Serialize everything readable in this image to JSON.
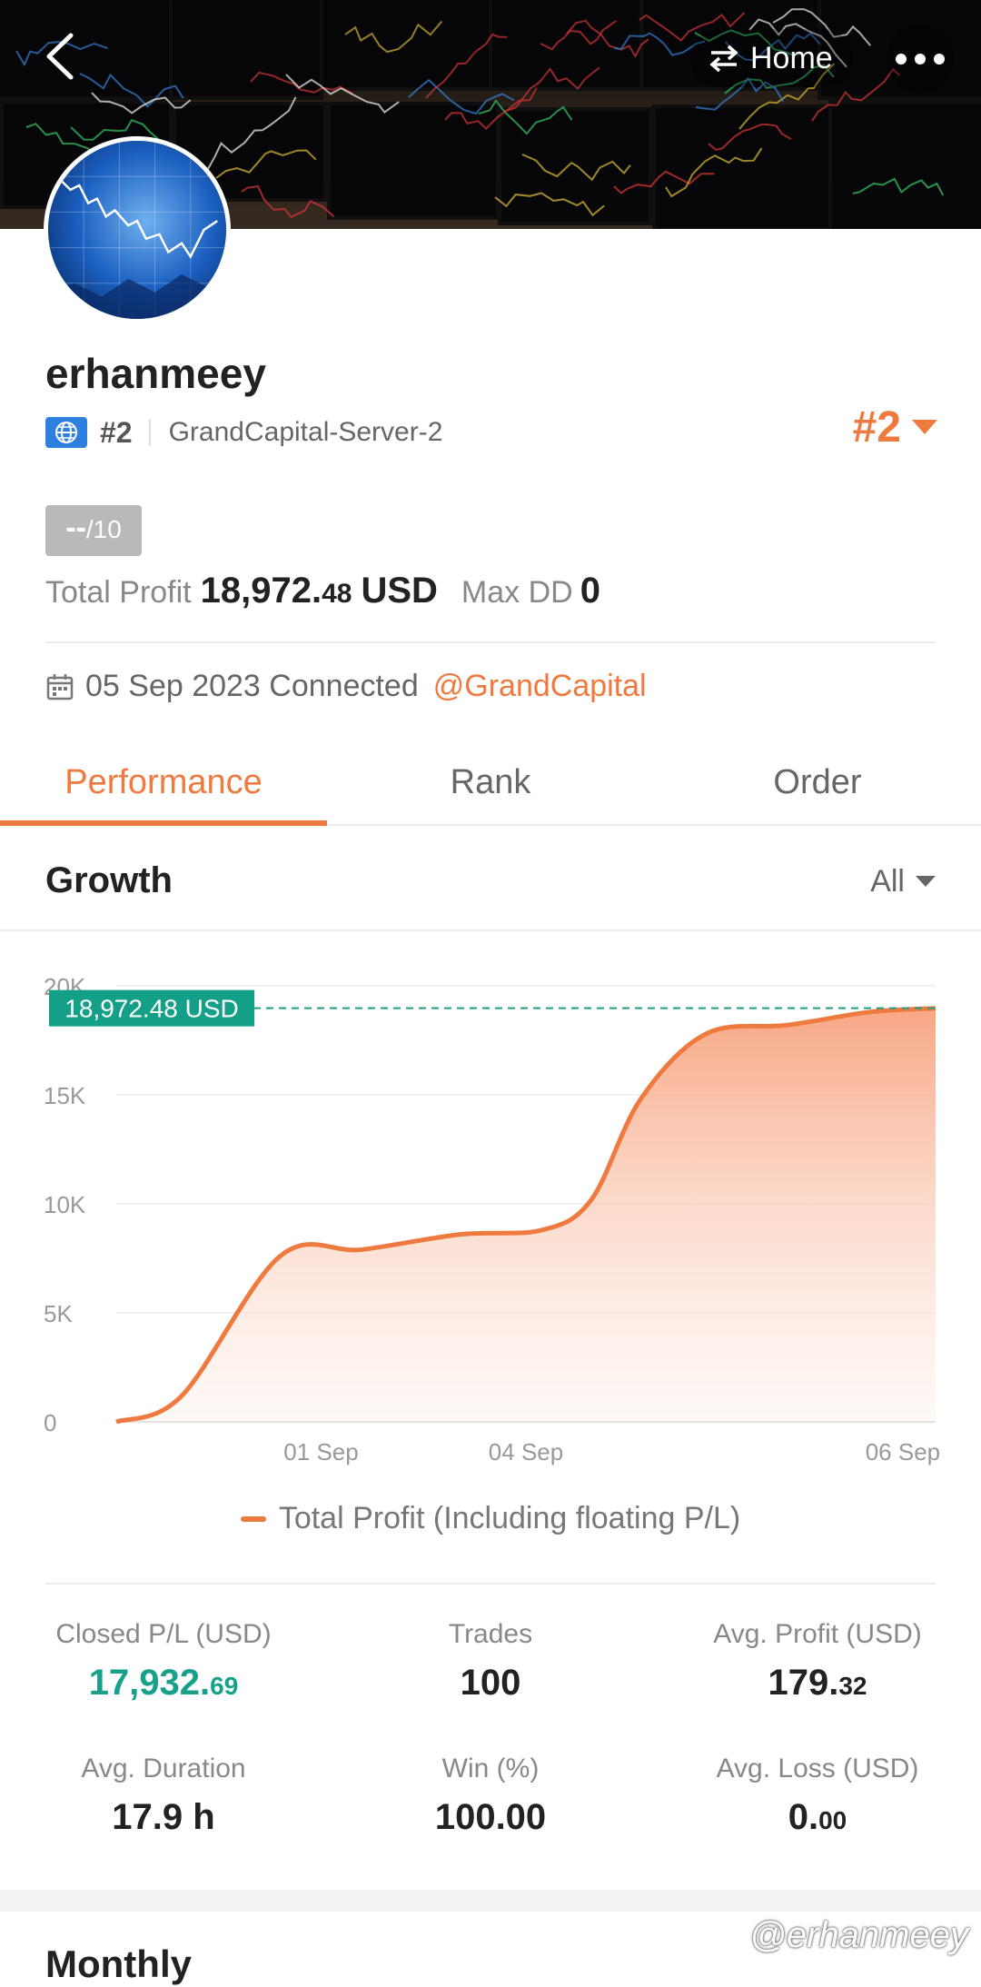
{
  "header": {
    "home_label": "Home",
    "back_icon": "chevron-left-icon",
    "home_icon": "swap-arrows-icon",
    "more_icon": "more-dots-icon"
  },
  "profile": {
    "username": "erhanmeey",
    "region_rank": "#2",
    "server": "GrandCapital-Server-2",
    "overall_rank": "#2",
    "score_value": "--",
    "score_max": "/10",
    "total_profit_label": "Total Profit",
    "total_profit_int": "18,972.",
    "total_profit_dec": "48",
    "total_profit_currency": "USD",
    "max_dd_label": "Max DD",
    "max_dd_value": "0",
    "connected_text": "05 Sep 2023 Connected",
    "broker": "@GrandCapital"
  },
  "tabs": [
    {
      "label": "Performance",
      "active": true
    },
    {
      "label": "Rank",
      "active": false
    },
    {
      "label": "Order",
      "active": false
    }
  ],
  "growth": {
    "title": "Growth",
    "filter": "All"
  },
  "chart_data": {
    "type": "area",
    "y_ticks": [
      "20K",
      "15K",
      "10K",
      "5K",
      "0"
    ],
    "x_ticks": [
      "01 Sep",
      "04 Sep",
      "06 Sep"
    ],
    "ylim": [
      0,
      20000
    ],
    "current_label": "18,972.48 USD",
    "current_value": 18972.48,
    "series": [
      {
        "name": "Total Profit (Including floating P/L)",
        "color": "#ef7a3f",
        "x": [
          0,
          0.08,
          0.2,
          0.3,
          0.42,
          0.52,
          0.58,
          0.64,
          0.72,
          0.82,
          0.92,
          1.0
        ],
        "values": [
          0,
          1200,
          7600,
          7900,
          8600,
          8800,
          10200,
          14800,
          17800,
          18200,
          18800,
          18972.48
        ]
      }
    ],
    "legend": "Total Profit (Including floating P/L)",
    "grid": true
  },
  "stats": {
    "closed_pl_label": "Closed P/L (USD)",
    "closed_pl_int": "17,932.",
    "closed_pl_dec": "69",
    "trades_label": "Trades",
    "trades_value": "100",
    "avg_profit_label": "Avg. Profit (USD)",
    "avg_profit_int": "179.",
    "avg_profit_dec": "32",
    "avg_duration_label": "Avg. Duration",
    "avg_duration_value": "17.9 h",
    "win_label": "Win (%)",
    "win_value": "100.00",
    "avg_loss_label": "Avg. Loss (USD)",
    "avg_loss_int": "0.",
    "avg_loss_dec": "00"
  },
  "monthly": {
    "title": "Monthly"
  },
  "watermark": "@erhanmeey",
  "colors": {
    "accent": "#ef7a3f",
    "positive": "#17a08a",
    "globe_badge": "#2f7fe0"
  }
}
